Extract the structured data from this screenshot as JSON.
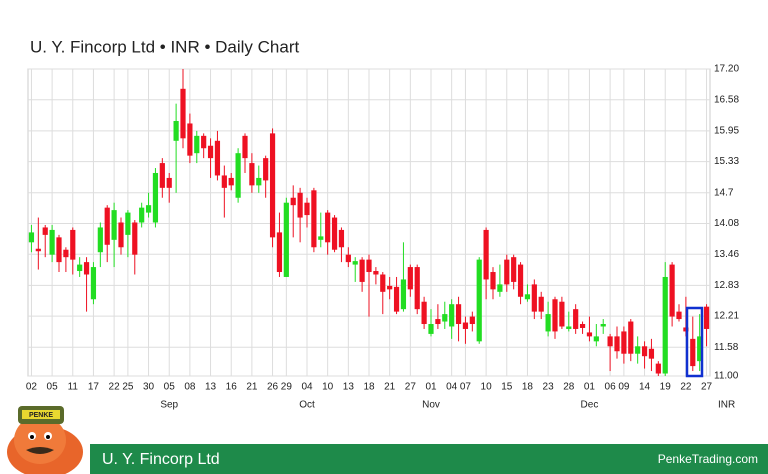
{
  "chart_data": {
    "type": "candlestick",
    "title": "U. Y. Fincorp Ltd • INR • Daily Chart",
    "y_axis_label": "INR",
    "up_color": "#22dd22",
    "down_color": "#ee1122",
    "grid": true,
    "ylim": [
      11.0,
      17.2
    ],
    "yticks": [
      {
        "value": 11.0,
        "label": "11.00"
      },
      11.58,
      12.21,
      12.83,
      13.46,
      14.08,
      14.7,
      15.33,
      15.95,
      16.58,
      {
        "value": 17.2,
        "label": "17.20"
      }
    ],
    "xlim": [
      -0.5,
      98.5
    ],
    "xticks": [
      {
        "value": 0,
        "label": "02"
      },
      {
        "value": 3,
        "label": "05"
      },
      {
        "value": 6,
        "label": "11"
      },
      {
        "value": 9,
        "label": "17"
      },
      {
        "value": 12,
        "label": "22"
      },
      {
        "value": 14,
        "label": "25"
      },
      {
        "value": 17,
        "label": "30"
      },
      {
        "value": 20,
        "label": "05"
      },
      {
        "value": 23,
        "label": "08"
      },
      {
        "value": 26,
        "label": "13"
      },
      {
        "value": 29,
        "label": "16"
      },
      {
        "value": 32,
        "label": "21"
      },
      {
        "value": 35,
        "label": "26"
      },
      {
        "value": 37,
        "label": "29"
      },
      {
        "value": 40,
        "label": "04"
      },
      {
        "value": 43,
        "label": "10"
      },
      {
        "value": 46,
        "label": "13"
      },
      {
        "value": 49,
        "label": "18"
      },
      {
        "value": 52,
        "label": "21"
      },
      {
        "value": 55,
        "label": "27"
      },
      {
        "value": 58,
        "label": "01"
      },
      {
        "value": 61,
        "label": "04"
      },
      {
        "value": 63,
        "label": "07"
      },
      {
        "value": 66,
        "label": "10"
      },
      {
        "value": 69,
        "label": "15"
      },
      {
        "value": 72,
        "label": "18"
      },
      {
        "value": 75,
        "label": "23"
      },
      {
        "value": 78,
        "label": "28"
      },
      {
        "value": 81,
        "label": "01"
      },
      {
        "value": 84,
        "label": "06"
      },
      {
        "value": 86,
        "label": "09"
      },
      {
        "value": 89,
        "label": "14"
      },
      {
        "value": 92,
        "label": "19"
      },
      {
        "value": 95,
        "label": "22"
      },
      {
        "value": 98,
        "label": "27"
      }
    ],
    "months": [
      {
        "value": 20,
        "label": "Sep"
      },
      {
        "value": 40,
        "label": "Oct"
      },
      {
        "value": 58,
        "label": "Nov"
      },
      {
        "value": 81,
        "label": "Dec"
      }
    ],
    "open": [
      13.7,
      13.57,
      14.0,
      13.45,
      13.8,
      13.55,
      13.95,
      13.12,
      13.3,
      12.55,
      13.5,
      14.4,
      13.75,
      14.1,
      13.85,
      14.1,
      14.1,
      14.3,
      14.1,
      15.3,
      15.0,
      15.75,
      16.8,
      16.1,
      15.5,
      15.85,
      15.65,
      15.75,
      15.05,
      15.0,
      14.6,
      15.85,
      15.3,
      14.85,
      15.4,
      15.9,
      13.9,
      13.0,
      14.6,
      14.7,
      14.5,
      14.75,
      13.75,
      14.3,
      14.2,
      13.95,
      13.45,
      13.25,
      13.35,
      13.35,
      13.12,
      13.05,
      12.82,
      12.8,
      12.35,
      13.2,
      13.2,
      12.5,
      11.85,
      12.15,
      12.1,
      12.0,
      12.45,
      12.08,
      12.2,
      11.7,
      13.95,
      13.1,
      12.7,
      13.35,
      13.4,
      13.25,
      12.55,
      12.85,
      12.6,
      11.9,
      12.55,
      12.5,
      11.95,
      12.35,
      12.05,
      11.88,
      11.7,
      12.0,
      11.8,
      11.8,
      11.9,
      12.1,
      11.45,
      11.6,
      11.55,
      11.25,
      11.05,
      13.25,
      12.3,
      11.98,
      11.75,
      11.3,
      12.4
    ],
    "high": [
      14.05,
      14.2,
      14.05,
      14.05,
      13.85,
      13.6,
      14.0,
      13.4,
      13.4,
      13.3,
      14.1,
      14.45,
      14.5,
      14.2,
      14.35,
      14.15,
      14.5,
      14.7,
      15.2,
      15.4,
      15.1,
      16.5,
      17.2,
      16.3,
      15.95,
      15.9,
      15.8,
      15.95,
      15.25,
      15.1,
      15.6,
      15.9,
      15.5,
      15.25,
      15.45,
      16.0,
      14.3,
      14.6,
      14.85,
      14.8,
      14.6,
      14.8,
      14.3,
      14.35,
      14.25,
      14.0,
      13.6,
      13.4,
      13.4,
      13.45,
      13.2,
      13.1,
      13.0,
      13.0,
      13.7,
      13.25,
      13.25,
      12.6,
      12.35,
      12.45,
      12.5,
      12.55,
      12.6,
      12.2,
      12.3,
      13.4,
      14.0,
      13.2,
      13.25,
      13.45,
      13.45,
      13.3,
      12.85,
      12.95,
      12.7,
      12.5,
      12.6,
      12.6,
      12.3,
      12.45,
      12.1,
      12.2,
      12.05,
      12.15,
      11.85,
      12.0,
      12.0,
      12.15,
      11.8,
      11.7,
      11.75,
      11.3,
      13.3,
      13.3,
      12.45,
      12.6,
      12.2,
      12.25,
      12.45
    ],
    "low": [
      13.5,
      13.15,
      13.4,
      13.3,
      13.1,
      13.1,
      13.05,
      13.0,
      12.3,
      12.45,
      13.2,
      13.3,
      13.2,
      13.45,
      13.4,
      13.05,
      14.0,
      14.2,
      14.0,
      14.6,
      14.5,
      14.7,
      15.6,
      15.3,
      15.3,
      15.4,
      15.0,
      14.95,
      14.2,
      14.75,
      14.5,
      15.1,
      14.7,
      14.7,
      14.6,
      13.6,
      13.0,
      13.0,
      13.8,
      13.7,
      14.0,
      13.5,
      13.6,
      13.45,
      13.5,
      13.3,
      13.2,
      12.9,
      12.7,
      12.2,
      12.85,
      12.25,
      12.55,
      12.25,
      12.3,
      12.6,
      12.25,
      11.95,
      11.8,
      11.95,
      11.95,
      11.75,
      11.7,
      11.65,
      11.9,
      11.65,
      12.55,
      12.55,
      12.6,
      12.7,
      12.75,
      12.45,
      12.5,
      12.15,
      12.15,
      11.8,
      11.75,
      11.95,
      11.9,
      11.85,
      11.85,
      11.7,
      11.6,
      11.85,
      11.1,
      11.35,
      11.25,
      11.3,
      11.25,
      11.15,
      11.1,
      11.0,
      11.0,
      12.0,
      12.1,
      11.8,
      11.1,
      11.1,
      11.6
    ],
    "close": [
      13.9,
      13.52,
      13.85,
      13.95,
      13.3,
      13.4,
      13.35,
      13.25,
      13.05,
      13.2,
      14.0,
      13.65,
      14.35,
      13.6,
      14.3,
      13.45,
      14.4,
      14.45,
      15.1,
      14.8,
      14.8,
      16.15,
      15.8,
      15.45,
      15.85,
      15.6,
      15.4,
      15.05,
      14.8,
      14.85,
      15.5,
      15.4,
      14.85,
      15.0,
      14.95,
      13.8,
      13.1,
      14.5,
      14.45,
      14.2,
      14.25,
      13.6,
      13.82,
      13.7,
      13.55,
      13.6,
      13.3,
      13.32,
      12.9,
      13.1,
      13.05,
      12.7,
      12.75,
      12.3,
      12.95,
      12.75,
      12.35,
      12.05,
      12.05,
      12.05,
      12.25,
      12.45,
      12.05,
      11.95,
      12.05,
      13.35,
      12.95,
      12.75,
      12.85,
      12.85,
      12.9,
      12.6,
      12.65,
      12.3,
      12.3,
      12.25,
      11.9,
      12.0,
      12.0,
      11.95,
      11.97,
      11.8,
      11.8,
      12.05,
      11.6,
      11.5,
      11.45,
      11.45,
      11.6,
      11.4,
      11.35,
      11.05,
      13.0,
      12.2,
      12.15,
      11.9,
      11.2,
      11.8,
      11.95
    ]
  },
  "footer": {
    "name": "U. Y. Fincorp Ltd",
    "site": "PenkeTrading.com",
    "logo": "PENKE"
  }
}
